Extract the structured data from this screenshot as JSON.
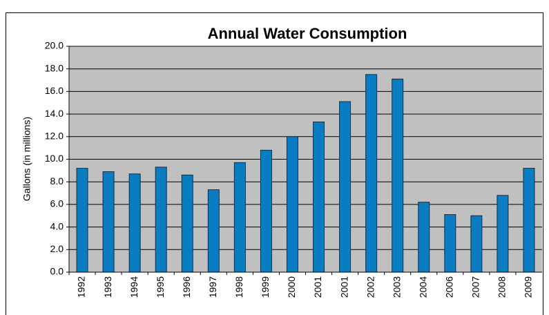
{
  "chart_data": {
    "type": "bar",
    "title": "Annual Water Consumption",
    "y_label": "Gallons (in millions)",
    "categories": [
      "1992",
      "1993",
      "1994",
      "1995",
      "1996",
      "1997",
      "1998",
      "1999",
      "2000",
      "2001",
      "2001",
      "2002",
      "2003",
      "2004",
      "2006",
      "2007",
      "2008",
      "2009"
    ],
    "values": [
      9.2,
      8.9,
      8.7,
      9.3,
      8.6,
      7.3,
      9.7,
      10.8,
      12.0,
      13.3,
      15.1,
      17.5,
      17.1,
      6.2,
      5.1,
      5.0,
      6.8,
      9.2
    ],
    "color": "#0a7dc2",
    "plot_background": "#c0c0c0",
    "ylim": [
      0,
      20
    ],
    "yticks": [
      {
        "value": 0,
        "label": "0.0"
      },
      {
        "value": 2,
        "label": "2.0"
      },
      {
        "value": 4,
        "label": "4.0"
      },
      {
        "value": 6,
        "label": "6.0"
      },
      {
        "value": 8,
        "label": "8.0"
      },
      {
        "value": 10,
        "label": "10.0"
      },
      {
        "value": 12,
        "label": "12.0"
      },
      {
        "value": 14,
        "label": "14.0"
      },
      {
        "value": 16,
        "label": "16.0"
      },
      {
        "value": 18,
        "label": "18.0"
      },
      {
        "value": 20,
        "label": "20.0"
      }
    ],
    "grid": true
  }
}
